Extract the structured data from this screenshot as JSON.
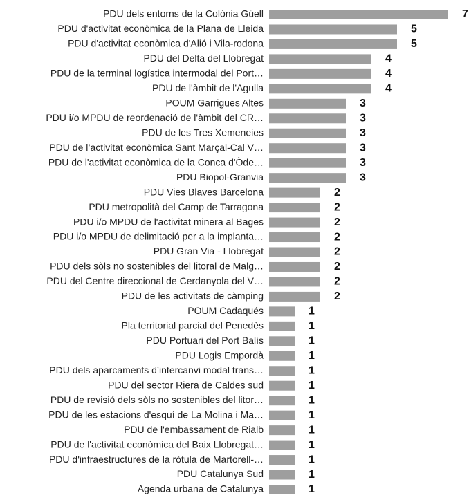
{
  "chart_data": {
    "type": "barh",
    "color": "#9e9e9e",
    "categories": [
      "PDU dels entorns de la Colònia Güell",
      "PDU d'activitat econòmica de la Plana de Lleida",
      "PDU d'activitat econòmica d'Alió i Vila-rodona",
      "PDU del Delta del Llobregat",
      "PDU de la terminal logística intermodal del Port…",
      "PDU de l'àmbit de l'Agulla",
      "POUM Garrigues Altes",
      "PDU i/o MPDU de reordenació de l'àmbit del CR…",
      "PDU de les Tres Xemeneies",
      "PDU de l’activitat econòmica Sant Marçal-Cal V…",
      "PDU de l'activitat econòmica de la Conca d'Òde…",
      "PDU Biopol-Granvia",
      "PDU Vies Blaves Barcelona",
      "PDU metropolità del Camp de Tarragona",
      "PDU i/o MPDU de l'activitat minera al Bages",
      "PDU i/o MPDU de delimitació per a la implanta…",
      "PDU Gran Via - Llobregat",
      "PDU dels sòls no sostenibles del litoral de Malg…",
      "PDU del Centre direccional de Cerdanyola del V…",
      "PDU de les activitats de càmping",
      "POUM Cadaqués",
      "Pla territorial parcial del Penedès",
      "PDU Portuari del Port Balís",
      "PDU Logis Empordà",
      "PDU dels aparcaments d’intercanvi modal trans…",
      "PDU del sector Riera de Caldes sud",
      "PDU de revisió dels sòls no sostenibles del litor…",
      "PDU de les estacions d'esquí de La Molina i Ma…",
      "PDU de l'embassament de Rialb",
      "PDU de l'activitat econòmica del Baix Llobregat…",
      "PDU d'infraestructures de la ròtula de Martorell-…",
      "PDU Catalunya Sud",
      "Agenda urbana de Catalunya"
    ],
    "values": [
      7,
      5,
      5,
      4,
      4,
      4,
      3,
      3,
      3,
      3,
      3,
      3,
      2,
      2,
      2,
      2,
      2,
      2,
      2,
      2,
      1,
      1,
      1,
      1,
      1,
      1,
      1,
      1,
      1,
      1,
      1,
      1,
      1
    ]
  }
}
